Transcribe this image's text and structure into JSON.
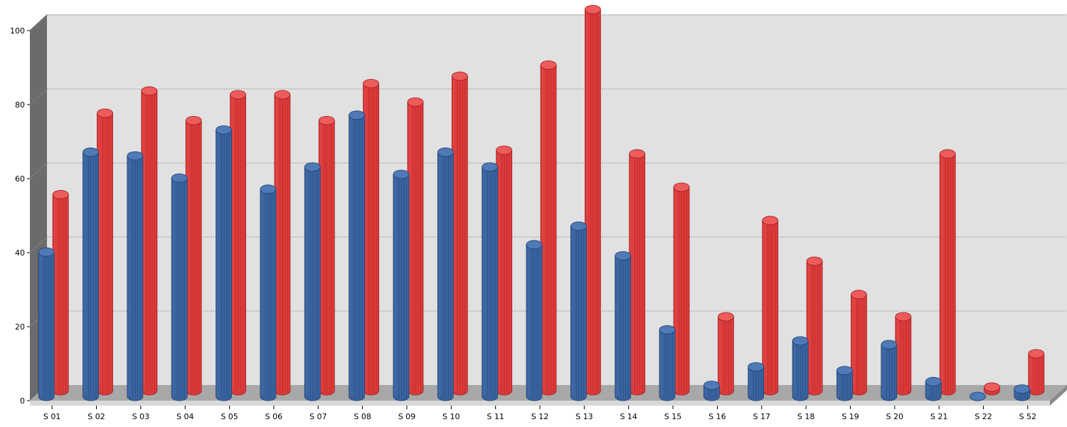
{
  "chart_data": {
    "type": "bar",
    "categories": [
      "S 01",
      "S 02",
      "S 03",
      "S 04",
      "S 05",
      "S 06",
      "S 07",
      "S 08",
      "S 09",
      "S 10",
      "S 11",
      "S 12",
      "S 13",
      "S 14",
      "S 15",
      "S 16",
      "S 17",
      "S 18",
      "S 19",
      "S 20",
      "S 21",
      "S 22",
      "S 52"
    ],
    "series": [
      {
        "values": [
          39,
          66,
          65,
          59,
          72,
          56,
          62,
          76,
          60,
          66,
          62,
          41,
          46,
          38,
          18,
          3,
          8,
          15,
          7,
          14,
          4,
          0,
          2
        ],
        "color": "#3a64a0"
      },
      {
        "values": [
          53,
          75,
          81,
          73,
          80,
          80,
          73,
          83,
          78,
          85,
          65,
          88,
          103,
          64,
          55,
          20,
          46,
          35,
          26,
          20,
          64,
          1,
          10
        ],
        "color": "#dd3b3b"
      }
    ],
    "ylim": [
      0,
      104
    ],
    "yticks": [
      0,
      20,
      40,
      60,
      80,
      100
    ],
    "grid": true,
    "legend": "none",
    "style": "3d-cylinder"
  },
  "colors": {
    "wall_back": "#e1e1e1",
    "wall_left": "#6b6b6b",
    "floor": "#a8a8a8",
    "gridline": "#7a7a7a"
  }
}
